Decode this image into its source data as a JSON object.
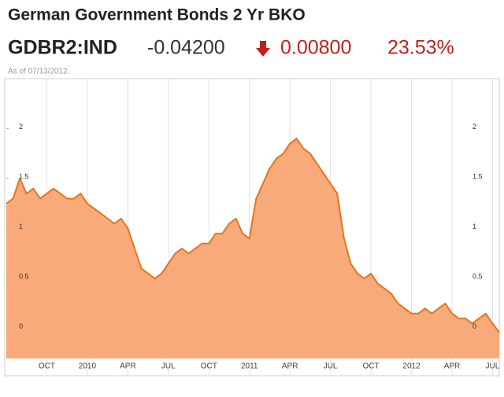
{
  "header": {
    "title": "German Government Bonds 2 Yr BKO",
    "ticker": "GDBR2:IND",
    "price": "-0.04200",
    "change": "0.00800",
    "change_percent": "23.53%",
    "as_of": "As of 07/13/2012."
  },
  "chart_data": {
    "type": "area",
    "color": "#e8731a",
    "fill": "#f9aa7b",
    "categories": [
      null,
      null,
      null,
      null,
      null,
      null,
      "OCT",
      null,
      null,
      null,
      null,
      null,
      "2010",
      null,
      null,
      null,
      null,
      null,
      "APR",
      null,
      null,
      null,
      null,
      null,
      "JUL",
      null,
      null,
      null,
      null,
      null,
      "OCT",
      null,
      null,
      null,
      null,
      null,
      "2011",
      null,
      null,
      null,
      null,
      null,
      "APR",
      null,
      null,
      null,
      null,
      null,
      "JUL",
      null,
      null,
      null,
      null,
      null,
      "OCT",
      null,
      null,
      null,
      null,
      null,
      "2012",
      null,
      null,
      null,
      null,
      null,
      "APR",
      null,
      null,
      null,
      null,
      null,
      "JUL",
      null
    ],
    "values": [
      1.25,
      1.3,
      1.5,
      1.35,
      1.4,
      1.3,
      1.35,
      1.4,
      1.35,
      1.3,
      1.3,
      1.35,
      1.25,
      1.2,
      1.15,
      1.1,
      1.05,
      1.1,
      1.0,
      0.8,
      0.6,
      0.55,
      0.5,
      0.55,
      0.65,
      0.75,
      0.8,
      0.75,
      0.8,
      0.85,
      0.85,
      0.95,
      0.95,
      1.05,
      1.1,
      0.95,
      0.9,
      1.3,
      1.45,
      1.6,
      1.7,
      1.75,
      1.85,
      1.9,
      1.8,
      1.75,
      1.65,
      1.55,
      1.45,
      1.35,
      0.9,
      0.65,
      0.55,
      0.5,
      0.55,
      0.45,
      0.4,
      0.35,
      0.25,
      0.2,
      0.15,
      0.15,
      0.2,
      0.15,
      0.2,
      0.25,
      0.15,
      0.1,
      0.1,
      0.05,
      0.1,
      0.15,
      0.05,
      -0.04
    ],
    "ylim": [
      -0.3,
      2.5
    ],
    "yticks": [
      0,
      0.5,
      1,
      1.5,
      2
    ],
    "grid": true
  }
}
